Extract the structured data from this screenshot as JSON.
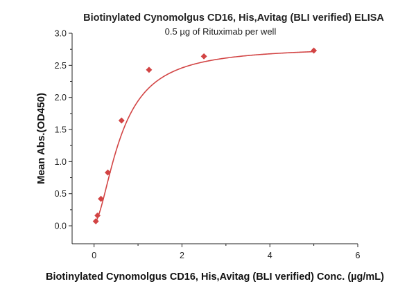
{
  "chart_data": {
    "type": "scatter",
    "title": "Biotinylated Cynomolgus CD16, His,Avitag (BLI verified) ELISA",
    "subtitle": "0.5 µg of Rituximab per well",
    "xlabel": "Biotinylated Cynomolgus CD16, His,Avitag (BLI verified) Conc. (µg/mL)",
    "ylabel": "Mean Abs.(OD450)",
    "xlim": [
      -0.5,
      6
    ],
    "ylim": [
      -0.28,
      3.0
    ],
    "x_ticks": [
      0,
      2,
      4,
      6
    ],
    "y_ticks": [
      0.0,
      0.5,
      1.0,
      1.5,
      2.0,
      2.5,
      3.0
    ],
    "x_tick_labels": [
      "0",
      "2",
      "4",
      "6"
    ],
    "y_tick_labels": [
      "0.0",
      "0.5",
      "1.0",
      "1.5",
      "2.0",
      "2.5",
      "3.0"
    ],
    "grid": false,
    "series": [
      {
        "name": "Mean Abs.(OD450)",
        "marker": "diamond",
        "color": "#d24444",
        "x": [
          0.0391,
          0.0781,
          0.1563,
          0.3125,
          0.625,
          1.25,
          2.5,
          5.0
        ],
        "y": [
          0.07,
          0.16,
          0.42,
          0.83,
          1.64,
          2.43,
          2.64,
          2.73
        ]
      }
    ],
    "fit_curve": {
      "type": "4PL",
      "color": "#d24444",
      "bottom": 0.04,
      "top": 2.79,
      "ec50": 0.62,
      "hill": 1.7
    }
  }
}
